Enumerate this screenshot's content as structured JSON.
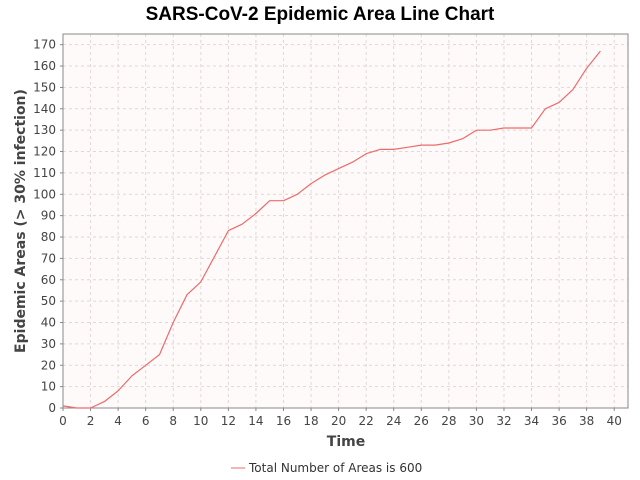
{
  "chart_data": {
    "type": "line",
    "title": "SARS-CoV-2 Epidemic Area Line Chart",
    "xlabel": "Time",
    "ylabel": "Epidemic Areas (> 30% infection)",
    "xlim": [
      0,
      41
    ],
    "ylim": [
      0,
      175
    ],
    "x_ticks": [
      0,
      2,
      4,
      6,
      8,
      10,
      12,
      14,
      16,
      18,
      20,
      22,
      24,
      26,
      28,
      30,
      32,
      34,
      36,
      38,
      40
    ],
    "y_ticks": [
      0,
      10,
      20,
      30,
      40,
      50,
      60,
      70,
      80,
      90,
      100,
      110,
      120,
      130,
      140,
      150,
      160,
      170
    ],
    "grid": true,
    "legend_position": "bottom",
    "series": [
      {
        "name": "Total Number of Areas is 600",
        "color": "#ee6a6a",
        "x": [
          0,
          1,
          2,
          3,
          4,
          5,
          6,
          7,
          8,
          9,
          10,
          11,
          12,
          13,
          14,
          15,
          16,
          17,
          18,
          19,
          20,
          21,
          22,
          23,
          24,
          25,
          26,
          27,
          28,
          29,
          30,
          31,
          32,
          33,
          34,
          35,
          36,
          37,
          38,
          39
        ],
        "y": [
          1,
          0,
          0,
          3,
          8,
          15,
          20,
          25,
          40,
          53,
          59,
          71,
          83,
          86,
          91,
          97,
          97,
          100,
          105,
          109,
          112,
          115,
          119,
          121,
          121,
          122,
          123,
          123,
          124,
          126,
          130,
          130,
          131,
          131,
          131,
          140,
          143,
          149,
          159,
          167
        ]
      }
    ]
  }
}
